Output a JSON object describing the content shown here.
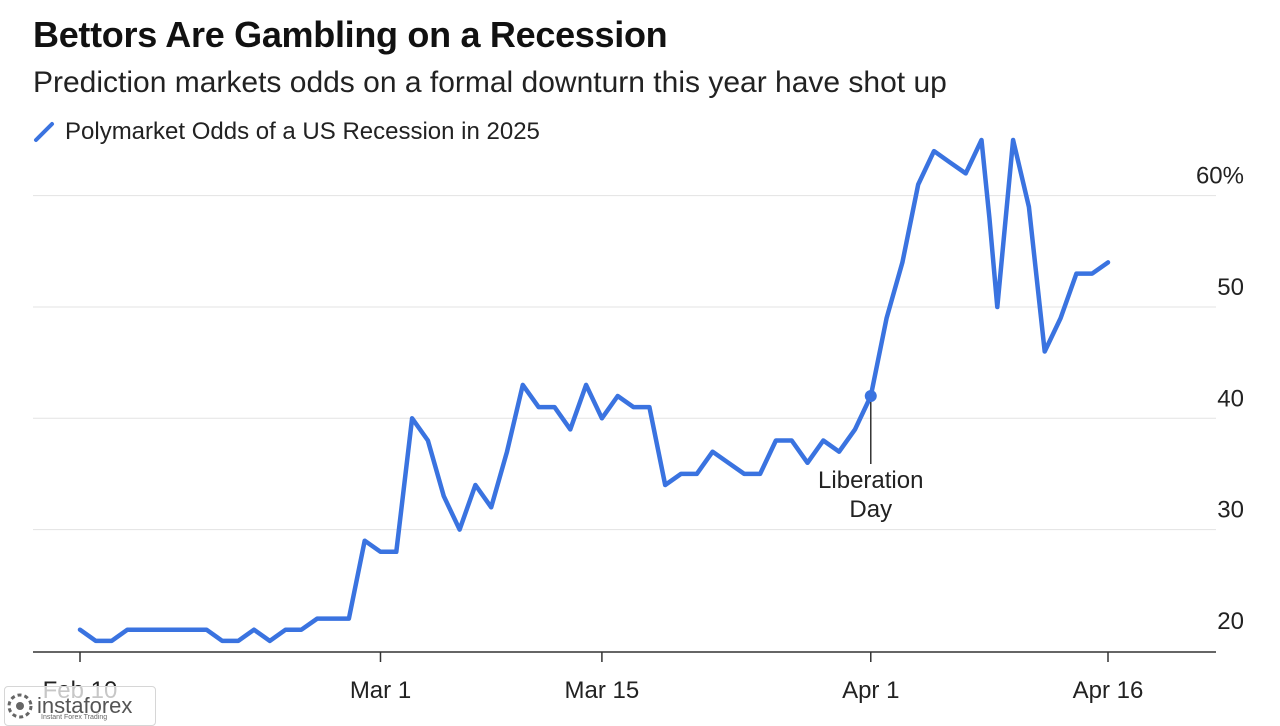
{
  "header": {
    "title": "Bettors Are Gambling on a Recession",
    "subtitle": "Prediction markets odds on a formal downturn this year have shot up"
  },
  "chart_data": {
    "type": "line",
    "title": "Bettors Are Gambling on a Recession",
    "subtitle": "Prediction markets odds on a formal downturn this year have shot up",
    "legend": [
      "Polymarket Odds of a US Recession in 2025"
    ],
    "legend_position": "top-left",
    "color": "#3a73e0",
    "y_axis_position": "right",
    "ylim": [
      19,
      65
    ],
    "y_ticks": [
      20,
      30,
      40,
      50,
      60
    ],
    "y_tick_labels": [
      "20",
      "30",
      "40",
      "50",
      "60%"
    ],
    "x_ticks": [
      {
        "day": 0,
        "label": "Feb 10"
      },
      {
        "day": 19,
        "label": "Mar 1"
      },
      {
        "day": 33,
        "label": "Mar 15"
      },
      {
        "day": 50,
        "label": "Apr 1"
      },
      {
        "day": 65,
        "label": "Apr 16"
      }
    ],
    "xlim": [
      -3,
      71
    ],
    "series": [
      {
        "name": "Polymarket Odds of a US Recession in 2025",
        "x": [
          0,
          1,
          2,
          3,
          4,
          5,
          6,
          7,
          8,
          9,
          10,
          11,
          12,
          13,
          14,
          15,
          16,
          17,
          18,
          19,
          20,
          21,
          22,
          23,
          24,
          25,
          26,
          27,
          28,
          29,
          30,
          31,
          32,
          33,
          34,
          35,
          36,
          37,
          38,
          39,
          40,
          41,
          42,
          43,
          44,
          45,
          46,
          47,
          48,
          49,
          50,
          51,
          52,
          53,
          54,
          55,
          56,
          57,
          57.5,
          58,
          59,
          60,
          61,
          62,
          63,
          64,
          65
        ],
        "values": [
          21,
          20,
          20,
          21,
          21,
          21,
          21,
          21,
          21,
          20,
          20,
          21,
          20,
          21,
          21,
          22,
          22,
          22,
          29,
          28,
          28,
          40,
          38,
          33,
          30,
          34,
          32,
          37,
          43,
          41,
          41,
          39,
          43,
          40,
          42,
          41,
          41,
          34,
          35,
          35,
          37,
          36,
          35,
          35,
          38,
          38,
          36,
          38,
          37,
          39,
          42,
          49,
          54,
          61,
          64,
          63,
          62,
          65,
          58,
          50,
          65,
          59,
          46,
          49,
          53,
          53,
          54
        ]
      }
    ],
    "annotations": [
      {
        "text": "Liberation Day",
        "lines": [
          "Liberation",
          "Day"
        ],
        "x": 50,
        "y": 42
      }
    ]
  },
  "watermark": {
    "brand": "instaforex",
    "tagline": "Instant Forex Trading"
  }
}
